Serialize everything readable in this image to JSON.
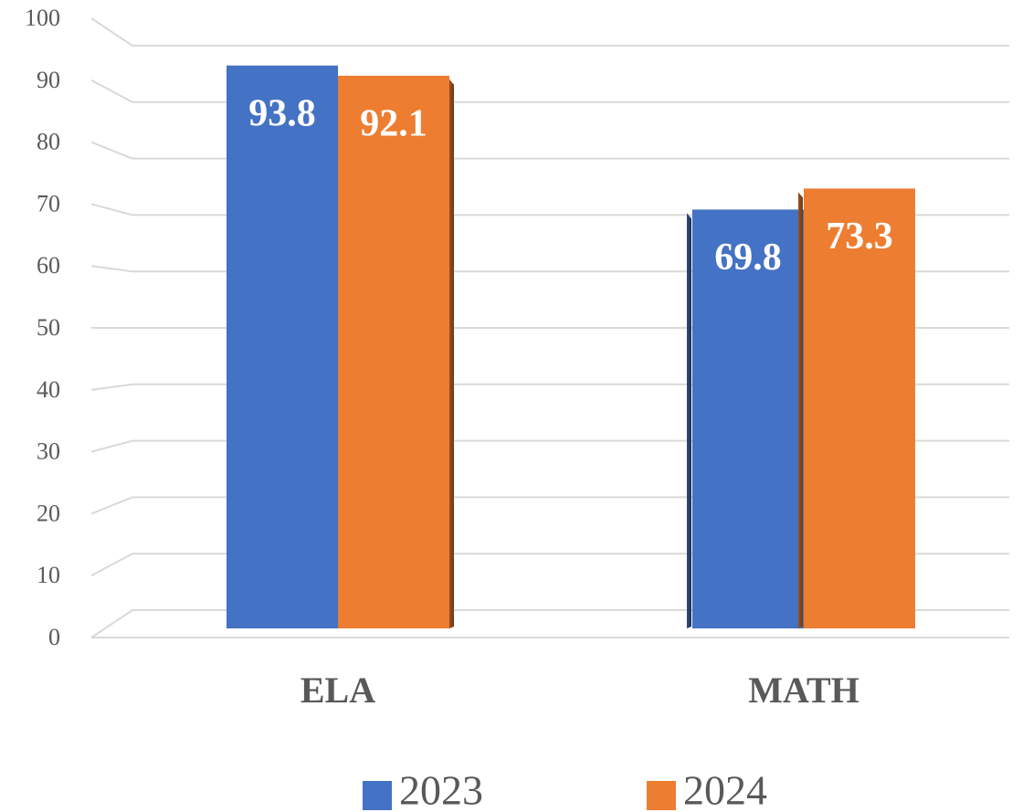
{
  "chart_data": {
    "type": "bar",
    "categories": [
      "ELA",
      "MATH"
    ],
    "series": [
      {
        "name": "2023",
        "color": "#4472c4",
        "values": [
          93.8,
          69.8
        ]
      },
      {
        "name": "2024",
        "color": "#ed7d31",
        "values": [
          92.1,
          73.3
        ]
      }
    ],
    "ylim": [
      0,
      100
    ],
    "yticks": [
      0,
      10,
      20,
      30,
      40,
      50,
      60,
      70,
      80,
      90,
      100
    ],
    "grid": true
  }
}
